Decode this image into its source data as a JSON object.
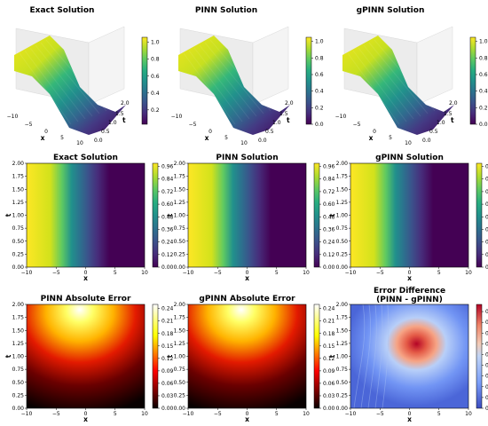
{
  "chart_data": [
    {
      "type": "surface3d",
      "title": "Exact Solution",
      "xlabel": "x",
      "ylabel": "t",
      "colormap": "viridis",
      "xticks": [
        "−10",
        "−5",
        "0",
        "5",
        "10"
      ],
      "yticks": [
        "0.0",
        "0.5",
        "1.0",
        "1.5",
        "2.0"
      ],
      "cbar_ticks": [
        "0.2",
        "0.4",
        "0.6",
        "0.8",
        "1.0"
      ],
      "cbar_range": [
        0.03,
        1.06
      ]
    },
    {
      "type": "surface3d",
      "title": "PINN Solution",
      "xlabel": "x",
      "ylabel": "t",
      "colormap": "viridis",
      "xticks": [
        "−10",
        "−5",
        "0",
        "5",
        "10"
      ],
      "yticks": [
        "0.0",
        "0.5",
        "1.0",
        "1.5",
        "2.0"
      ],
      "cbar_ticks": [
        "0.0",
        "0.2",
        "0.4",
        "0.6",
        "0.8",
        "1.0"
      ],
      "cbar_range": [
        0.0,
        1.05
      ]
    },
    {
      "type": "surface3d",
      "title": "gPINN Solution",
      "xlabel": "x",
      "ylabel": "t",
      "colormap": "viridis",
      "xticks": [
        "−10",
        "−5",
        "0",
        "5",
        "10"
      ],
      "yticks": [
        "0.0",
        "0.5",
        "1.0",
        "1.5",
        "2.0"
      ],
      "cbar_ticks": [
        "0.0",
        "0.2",
        "0.4",
        "0.6",
        "0.8",
        "1.0"
      ],
      "cbar_range": [
        0.0,
        1.05
      ]
    },
    {
      "type": "heatmap",
      "title": "Exact Solution",
      "xlabel": "x",
      "ylabel": "t",
      "colormap": "viridis",
      "xlim": [
        -10,
        10
      ],
      "ylim": [
        0,
        2
      ],
      "xticks": [
        "−10",
        "−5",
        "0",
        "5",
        "10"
      ],
      "yticks": [
        "0.00",
        "0.25",
        "0.50",
        "0.75",
        "1.00",
        "1.25",
        "1.50",
        "1.75",
        "2.00"
      ],
      "cbar_ticks": [
        "0.00",
        "0.12",
        "0.24",
        "0.36",
        "0.48",
        "0.60",
        "0.72",
        "0.84",
        "0.96"
      ],
      "cbar_range": [
        0,
        0.99
      ]
    },
    {
      "type": "heatmap",
      "title": "PINN Solution",
      "xlabel": "x",
      "ylabel": "t",
      "colormap": "viridis",
      "xlim": [
        -10,
        10
      ],
      "ylim": [
        0,
        2
      ],
      "xticks": [
        "−10",
        "−5",
        "0",
        "5",
        "10"
      ],
      "yticks": [
        "0.00",
        "0.25",
        "0.50",
        "0.75",
        "1.00",
        "1.25",
        "1.50",
        "1.75",
        "2.00"
      ],
      "cbar_ticks": [
        "0.00",
        "0.12",
        "0.24",
        "0.36",
        "0.48",
        "0.60",
        "0.72",
        "0.84",
        "0.96"
      ],
      "cbar_range": [
        0,
        0.99
      ]
    },
    {
      "type": "heatmap",
      "title": "gPINN Solution",
      "xlabel": "x",
      "ylabel": "t",
      "colormap": "viridis",
      "xlim": [
        -10,
        10
      ],
      "ylim": [
        0,
        2
      ],
      "xticks": [
        "−10",
        "−5",
        "0",
        "5",
        "10"
      ],
      "yticks": [
        "0.00",
        "0.25",
        "0.50",
        "0.75",
        "1.00",
        "1.25",
        "1.50",
        "1.75",
        "2.00"
      ],
      "cbar_ticks": [
        "0.00",
        "0.12",
        "0.24",
        "0.36",
        "0.48",
        "0.60",
        "0.72",
        "0.84",
        "0.96"
      ],
      "cbar_range": [
        0,
        0.99
      ]
    },
    {
      "type": "heatmap",
      "title": "PINN Absolute Error",
      "xlabel": "x",
      "ylabel": "t",
      "colormap": "hot",
      "xlim": [
        -10,
        10
      ],
      "ylim": [
        0,
        2
      ],
      "xticks": [
        "−10",
        "−5",
        "0",
        "5",
        "10"
      ],
      "yticks": [
        "0.00",
        "0.25",
        "0.50",
        "0.75",
        "1.00",
        "1.25",
        "1.50",
        "1.75",
        "2.00"
      ],
      "cbar_ticks": [
        "0.00",
        "0.03",
        "0.06",
        "0.09",
        "0.12",
        "0.15",
        "0.18",
        "0.21",
        "0.24"
      ],
      "cbar_range": [
        0,
        0.25
      ]
    },
    {
      "type": "heatmap",
      "title": "gPINN Absolute Error",
      "xlabel": "x",
      "ylabel": "t",
      "colormap": "hot",
      "xlim": [
        -10,
        10
      ],
      "ylim": [
        0,
        2
      ],
      "xticks": [
        "−10",
        "−5",
        "0",
        "5",
        "10"
      ],
      "yticks": [
        "0.00",
        "0.25",
        "0.50",
        "0.75",
        "1.00",
        "1.25",
        "1.50",
        "1.75",
        "2.00"
      ],
      "cbar_ticks": [
        "0.00",
        "0.03",
        "0.06",
        "0.09",
        "0.12",
        "0.15",
        "0.18",
        "0.21",
        "0.24"
      ],
      "cbar_range": [
        0,
        0.25
      ]
    },
    {
      "type": "heatmap",
      "title": "Error Difference",
      "subtitle": "(PINN - gPINN)",
      "xlabel": "x",
      "ylabel": "t",
      "colormap": "coolwarm",
      "xlim": [
        -10,
        10
      ],
      "ylim": [
        0,
        2
      ],
      "xticks": [
        "−10",
        "−5",
        "0",
        "5",
        "10"
      ],
      "yticks": [
        "0.00",
        "0.25",
        "0.50",
        "0.75",
        "1.00",
        "1.25",
        "1.50",
        "1.75",
        "2.00"
      ],
      "cbar_ticks": [
        "0.000",
        "0.003",
        "0.006",
        "0.009",
        "0.012",
        "0.015",
        "0.018",
        "0.021",
        "0.024",
        "0.027"
      ],
      "cbar_range": [
        0,
        0.029
      ]
    }
  ]
}
